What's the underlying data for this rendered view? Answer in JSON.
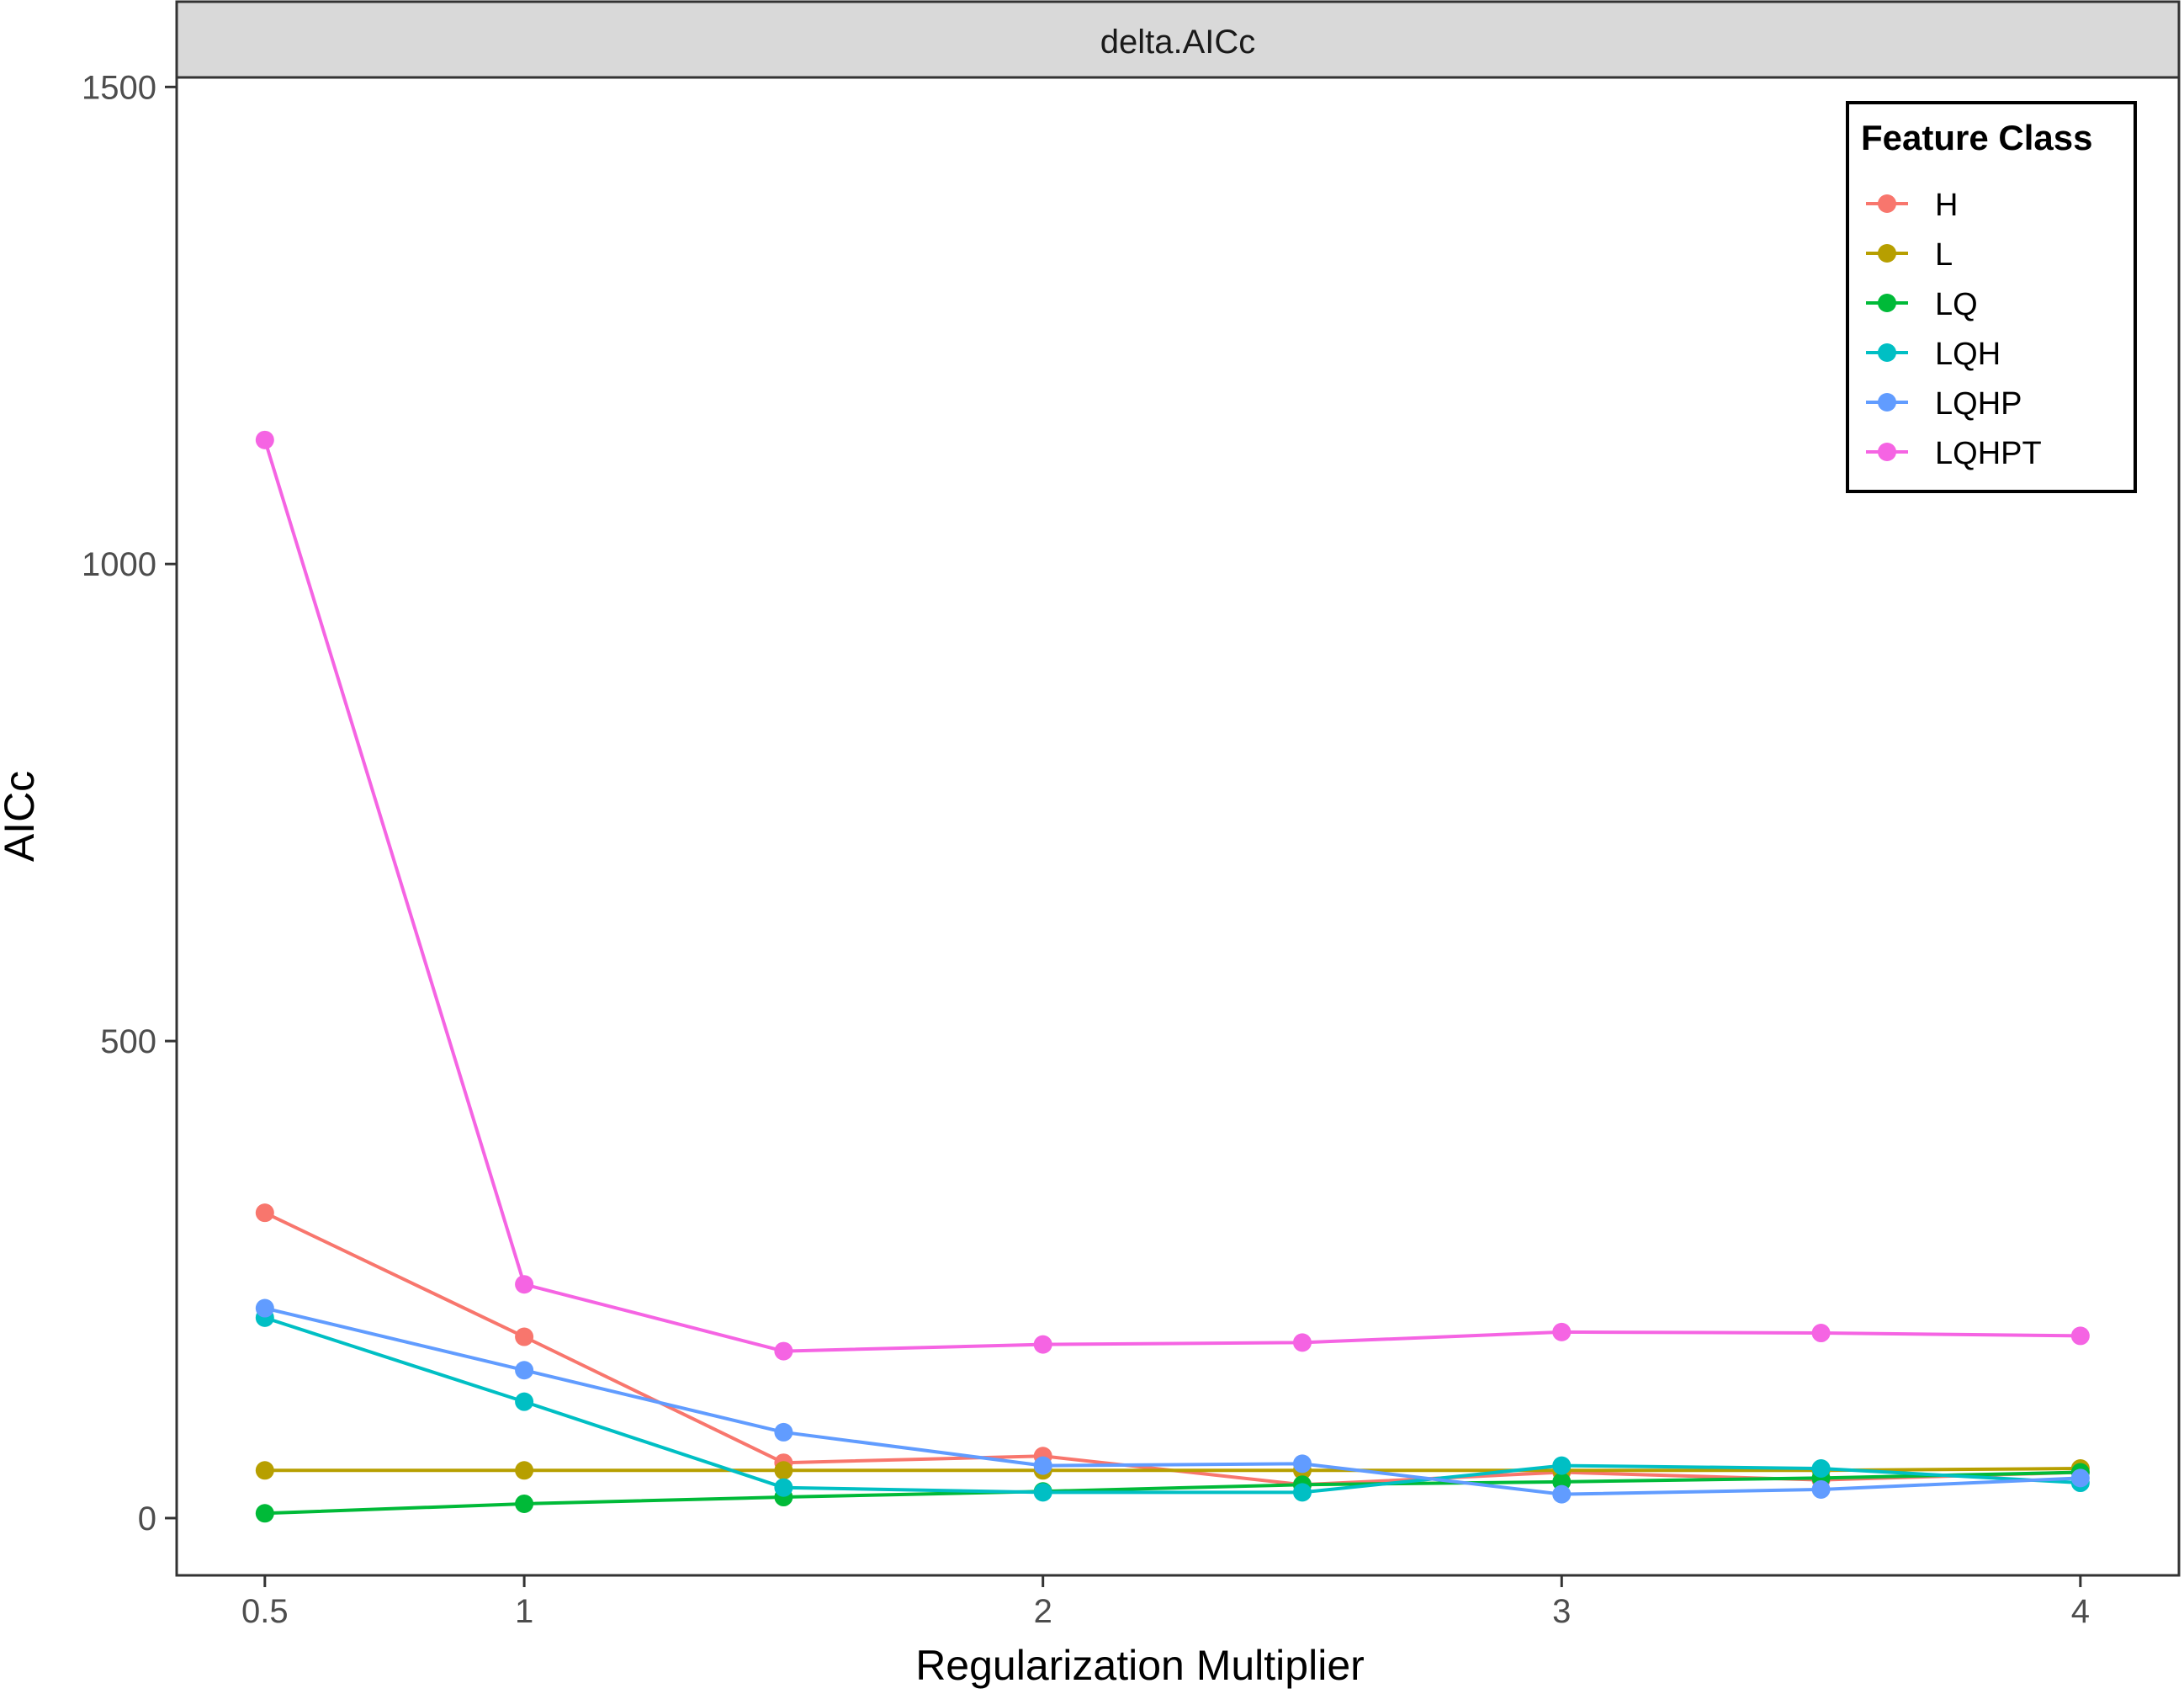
{
  "chart_data": {
    "type": "line",
    "facet_label": "delta.AICc",
    "xlabel": "Regularization Multiplier",
    "ylabel": "AICc",
    "xlim": [
      0.33,
      4.19
    ],
    "ylim": [
      -60,
      1510
    ],
    "x_ticks": [
      0.5,
      1,
      2,
      3,
      4
    ],
    "x_tick_labels": [
      "0.5",
      "1",
      "2",
      "3",
      "4"
    ],
    "y_ticks": [
      0,
      500,
      1000,
      1500
    ],
    "y_tick_labels": [
      "0",
      "500",
      "1000",
      "1500"
    ],
    "grid": false,
    "legend": {
      "title": "Feature Class",
      "placement": "top-right"
    },
    "x": [
      0.5,
      1,
      1.5,
      2,
      2.5,
      3,
      3.5,
      4
    ],
    "series": [
      {
        "name": "H",
        "color": "#F8766D",
        "values": [
          320,
          190,
          58,
          65,
          35,
          48,
          40,
          48
        ]
      },
      {
        "name": "L",
        "color": "#B79F00",
        "values": [
          50,
          50,
          50,
          50,
          50,
          50,
          50,
          52
        ]
      },
      {
        "name": "LQ",
        "color": "#00BA38",
        "values": [
          5,
          15,
          22,
          28,
          35,
          38,
          42,
          48
        ]
      },
      {
        "name": "LQH",
        "color": "#00BFC4",
        "values": [
          210,
          122,
          32,
          27,
          27,
          55,
          52,
          37
        ]
      },
      {
        "name": "LQHP",
        "color": "#619CFF",
        "values": [
          220,
          155,
          90,
          55,
          57,
          25,
          30,
          42
        ]
      },
      {
        "name": "LQHPT",
        "color": "#F564E3",
        "values": [
          1130,
          245,
          175,
          182,
          184,
          195,
          194,
          191
        ]
      }
    ]
  }
}
